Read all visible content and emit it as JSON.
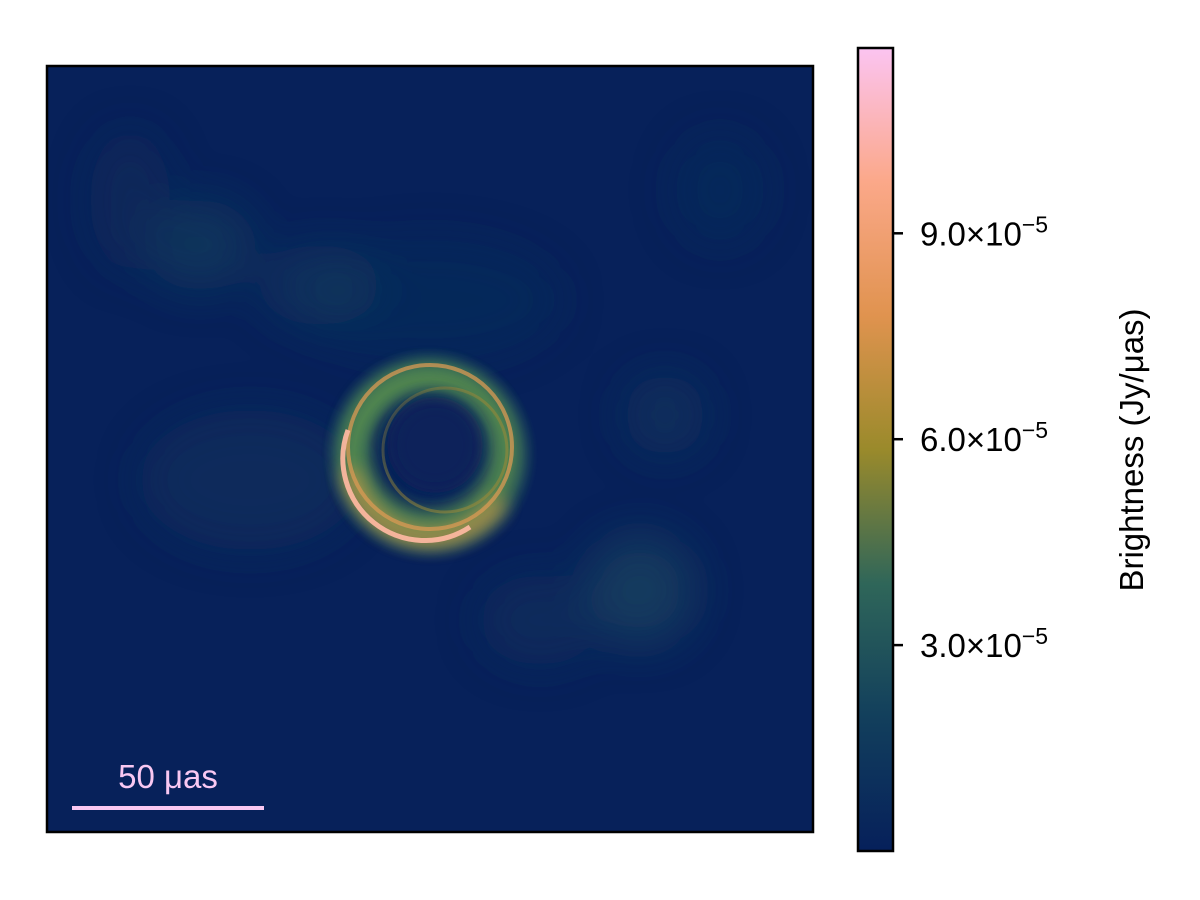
{
  "chart_data": {
    "type": "heatmap",
    "title": "",
    "image_description_values": "black-hole ring image; dark blue background with faint blotches, bright ring near center, brightest on lower-left arc",
    "ring": {
      "center": [
        -4,
        2
      ],
      "outer_radius_uas": 43,
      "inner_radius_uas": 22,
      "peak_brightness": 0.000115,
      "background_brightness": 5e-06
    },
    "scalebar": {
      "label": "50 μas",
      "length_uas": 50,
      "color": "#f9c8f2"
    },
    "colorbar": {
      "label": "Brightness (Jy/μas)",
      "range": [
        0,
        0.000117
      ],
      "ticks": [
        {
          "value": 3e-05,
          "mantissa": "3.0",
          "base": "×10",
          "exponent": "−5"
        },
        {
          "value": 6e-05,
          "mantissa": "6.0",
          "base": "×10",
          "exponent": "−5"
        },
        {
          "value": 9e-05,
          "mantissa": "9.0",
          "base": "×10",
          "exponent": "−5"
        }
      ],
      "colormap": [
        "#06205b",
        "#123f5c",
        "#2f6659",
        "#9a8a2b",
        "#e0934f",
        "#fba889",
        "#fbc4f1"
      ]
    }
  }
}
